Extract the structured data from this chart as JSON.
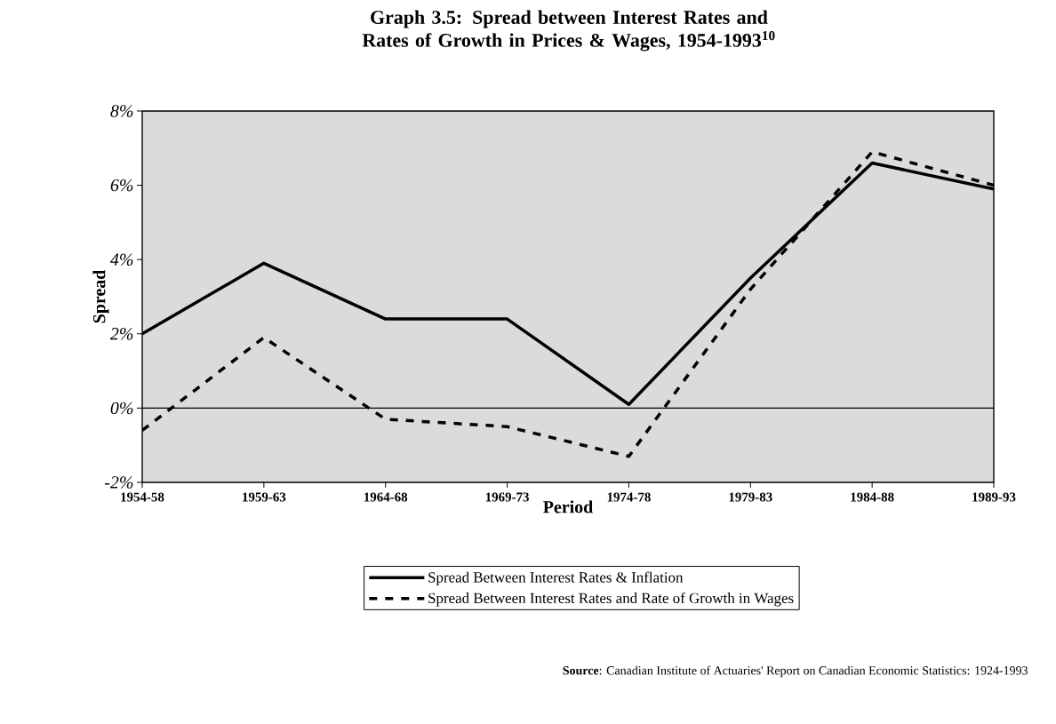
{
  "chart_data": {
    "type": "line",
    "title": "Graph 3.5: Spread between Interest Rates and Rates of Growth in Prices & Wages, 1954-1993$^{10}$",
    "xlabel": "Period",
    "ylabel": "Spread",
    "categories": [
      "1954-58",
      "1959-63",
      "1964-68",
      "1969-73",
      "1974-78",
      "1979-83",
      "1984-88",
      "1989-93"
    ],
    "series": [
      {
        "name": "Spread Between Interest Rates & Inflation",
        "color": "#000000",
        "line_style": "solid",
        "values": [
          2.0,
          3.9,
          2.4,
          2.4,
          0.1,
          3.5,
          6.6,
          5.9
        ]
      },
      {
        "name": "Spread Between Interest Rates and Rate of Growth in Wages",
        "color": "#000000",
        "line_style": "dashed",
        "values": [
          -0.6,
          1.9,
          -0.3,
          -0.5,
          -1.3,
          3.2,
          6.9,
          6.0
        ]
      }
    ],
    "ylim": [
      -2,
      8
    ],
    "yticks": [
      {
        "value": -2,
        "label": "-2%"
      },
      {
        "value": 0,
        "label": "0%"
      },
      {
        "value": 2,
        "label": "2%"
      },
      {
        "value": 4,
        "label": "4%"
      },
      {
        "value": 6,
        "label": "6%"
      },
      {
        "value": 8,
        "label": "8%"
      }
    ],
    "ref_lines": [
      {
        "axis": "y",
        "value": 0
      }
    ],
    "legend": "bottom",
    "marker": "none",
    "annotations": [
      "**Source**: Canadian Institute of Actuaries' Report on Canadian Economic Statistics: 1924-1993"
    ]
  }
}
